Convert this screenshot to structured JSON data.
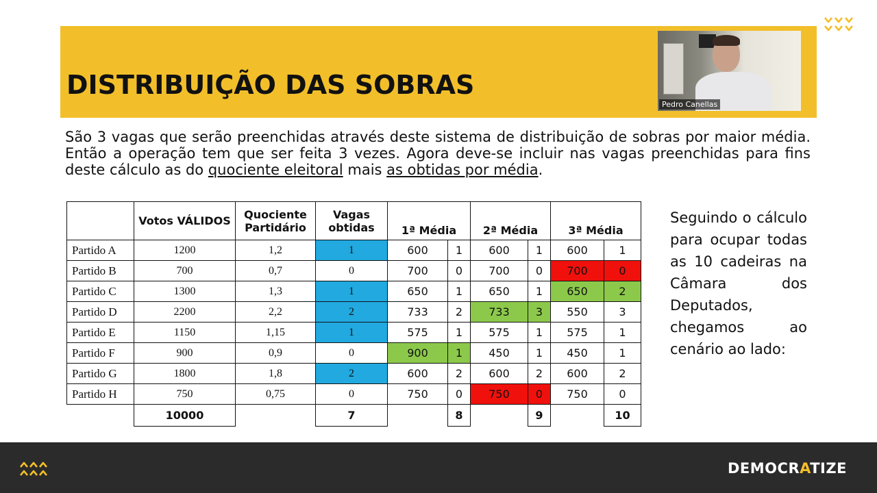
{
  "slide": {
    "title": "DISTRIBUIÇÃO DAS SOBRAS",
    "intro_part1": "São 3 vagas que serão preenchidas através deste sistema de distribuição de sobras por maior média. Então a operação tem que ser feita 3 vezes. Agora deve-se incluir nas vagas preenchidas para fins deste cálculo as do ",
    "intro_link1": "quociente eleitoral",
    "intro_part2": " mais ",
    "intro_link2": "as obtidas por média",
    "intro_part3": ".",
    "side_text": "Seguindo o cálculo para ocupar todas as 10 cadeiras na Câmara dos Deputados, chegamos ao cenário ao lado:"
  },
  "video": {
    "participant_name": "Pedro Canellas"
  },
  "table": {
    "headers": {
      "votos": "Votos VÁLIDOS",
      "quociente": "Quociente Partidário",
      "vagas": "Vagas obtidas",
      "media1": "1ª Média",
      "media2": "2ª Média",
      "media3": "3ª Média"
    },
    "rows": [
      {
        "party": "Partido A",
        "votos": "1200",
        "quociente": "1,2",
        "vagas": "1",
        "m1": "600",
        "s1": "1",
        "m2": "600",
        "s2": "1",
        "m3": "600",
        "s3": "1"
      },
      {
        "party": "Partido B",
        "votos": "700",
        "quociente": "0,7",
        "vagas": "0",
        "m1": "700",
        "s1": "0",
        "m2": "700",
        "s2": "0",
        "m3": "700",
        "s3": "0"
      },
      {
        "party": "Partido C",
        "votos": "1300",
        "quociente": "1,3",
        "vagas": "1",
        "m1": "650",
        "s1": "1",
        "m2": "650",
        "s2": "1",
        "m3": "650",
        "s3": "2"
      },
      {
        "party": "Partido D",
        "votos": "2200",
        "quociente": "2,2",
        "vagas": "2",
        "m1": "733",
        "s1": "2",
        "m2": "733",
        "s2": "3",
        "m3": "550",
        "s3": "3"
      },
      {
        "party": "Partido E",
        "votos": "1150",
        "quociente": "1,15",
        "vagas": "1",
        "m1": "575",
        "s1": "1",
        "m2": "575",
        "s2": "1",
        "m3": "575",
        "s3": "1"
      },
      {
        "party": "Partido F",
        "votos": "900",
        "quociente": "0,9",
        "vagas": "0",
        "m1": "900",
        "s1": "1",
        "m2": "450",
        "s2": "1",
        "m3": "450",
        "s3": "1"
      },
      {
        "party": "Partido G",
        "votos": "1800",
        "quociente": "1,8",
        "vagas": "2",
        "m1": "600",
        "s1": "2",
        "m2": "600",
        "s2": "2",
        "m3": "600",
        "s3": "2"
      },
      {
        "party": "Partido H",
        "votos": "750",
        "quociente": "0,75",
        "vagas": "0",
        "m1": "750",
        "s1": "0",
        "m2": "750",
        "s2": "0",
        "m3": "750",
        "s3": "0"
      }
    ],
    "totals": {
      "votos": "10000",
      "vagas": "7",
      "s1": "8",
      "s2": "9",
      "s3": "10"
    }
  },
  "footer": {
    "brand_pre": "DEMOCR",
    "brand_accent": "A",
    "brand_post": "TIZE"
  },
  "colors": {
    "accent": "#f2bf2a",
    "vagas_highlight": "#21a9e0",
    "winner_highlight": "#8cc94b",
    "loser_highlight": "#f0110c",
    "footer_bg": "#2b2b2b"
  },
  "icons": {
    "top_right": "chevron-down-cluster-icon",
    "bottom_left": "chevron-up-cluster-icon"
  }
}
